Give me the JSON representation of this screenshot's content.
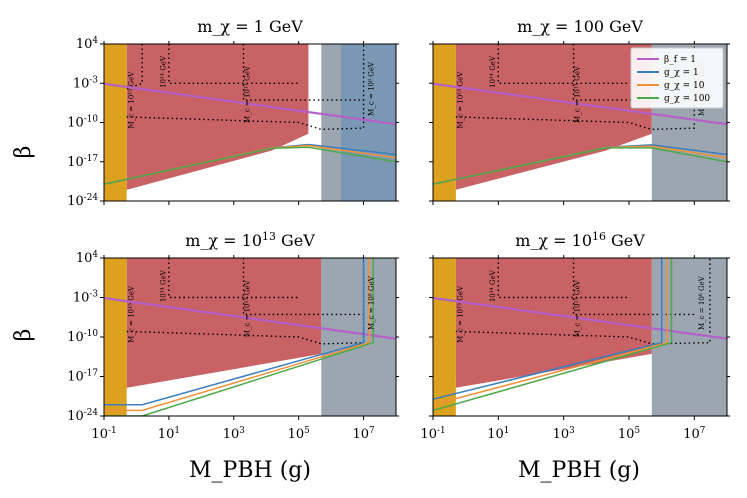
{
  "chart_data": {
    "type": "area",
    "x_scale": "log",
    "y_scale": "log",
    "xlim": [
      0.1,
      100000000
    ],
    "ylim": [
      1e-24,
      10000
    ],
    "shared_xlabel": "M_PBH (g)",
    "shared_ylabel": "β",
    "x_ticks": [
      {
        "value": 0.1,
        "label": "10^-1"
      },
      {
        "value": 10,
        "label": "10^1"
      },
      {
        "value": 1000,
        "label": "10^3"
      },
      {
        "value": 100000,
        "label": "10^5"
      },
      {
        "value": 10000000,
        "label": "10^7"
      }
    ],
    "y_ticks": [
      {
        "value": 1e-24,
        "label": "10^-24"
      },
      {
        "value": 1e-17,
        "label": "10^-17"
      },
      {
        "value": 1e-10,
        "label": "10^-10"
      },
      {
        "value": 0.001,
        "label": "10^-3"
      },
      {
        "value": 10000,
        "label": "10^4"
      }
    ],
    "colors": {
      "beta_f": "#b55fc8",
      "g1": "#3b7dbd",
      "g10": "#f0913a",
      "g100": "#4da84a",
      "orange_band": "#dba11f",
      "red_region": "#c65a5d",
      "gray_region": "#8a97a3",
      "blue_region": "#6f93b4"
    },
    "legend": [
      {
        "key": "beta_f",
        "label": "β_f = 1"
      },
      {
        "key": "g1",
        "label": "g_χ = 1"
      },
      {
        "key": "g10",
        "label": "g_χ = 10"
      },
      {
        "key": "g100",
        "label": "g_χ = 100"
      }
    ],
    "panels": [
      {
        "title": "m_χ = 1 GeV",
        "orange_band": [
          0.1,
          0.5
        ],
        "red_region": [
          [
            0.5,
            10000
          ],
          [
            200000,
            10000
          ],
          [
            200000,
            1e-12
          ],
          [
            15000,
            1e-15
          ],
          [
            0.5,
            1e-22
          ]
        ],
        "gray_region": [
          [
            500000,
            10000
          ],
          [
            100000000,
            10000
          ],
          [
            100000000,
            1e-24
          ],
          [
            500000,
            1e-24
          ]
        ],
        "blue_region": [
          [
            2000000,
            10000
          ],
          [
            100000000,
            10000
          ],
          [
            100000000,
            1e-24
          ],
          [
            2000000,
            1e-24
          ]
        ],
        "series": [
          {
            "key": "beta_f",
            "points": [
              [
                0.1,
                0.0008
              ],
              [
                100000000,
                5e-11
              ]
            ]
          },
          {
            "key": "g1",
            "points": [
              [
                0.1,
                1e-21
              ],
              [
                15000,
                3e-15
              ],
              [
                200000,
                1.2e-14
              ],
              [
                100000000,
                2e-16
              ]
            ]
          },
          {
            "key": "g10",
            "points": [
              [
                0.1,
                1e-21
              ],
              [
                15000,
                3e-15
              ],
              [
                200000,
                8e-15
              ],
              [
                100000000,
                5e-17
              ]
            ]
          },
          {
            "key": "g100",
            "points": [
              [
                0.1,
                1e-21
              ],
              [
                15000,
                2.5e-15
              ],
              [
                200000,
                4e-15
              ],
              [
                100000000,
                1e-17
              ]
            ]
          }
        ],
        "dotted_bounds": [
          [
            [
              0.5,
              1e-09
            ],
            [
              100000,
              1e-10
            ],
            [
              500000,
              6e-12
            ],
            [
              10000000,
              1e-11
            ],
            [
              10000000,
              10000
            ]
          ],
          [
            [
              10,
              10000
            ],
            [
              10,
              0.001
            ],
            [
              100000,
              0.001
            ]
          ],
          [
            [
              2000,
              10000
            ],
            [
              2000,
              1e-06
            ],
            [
              10000000,
              1e-06
            ]
          ],
          [
            [
              1.5,
              10000
            ],
            [
              1.5,
              0.001
            ],
            [
              0.5,
              0.0001
            ]
          ]
        ],
        "annotations": [
          "M_c = 10^15 GeV",
          "10^14 GeV",
          "M_c = 10^11 GeV",
          "M_c = 10^8 GeV"
        ]
      },
      {
        "title": "m_χ = 100 GeV",
        "orange_band": [
          0.1,
          0.5
        ],
        "red_region": [
          [
            0.5,
            10000
          ],
          [
            500000,
            10000
          ],
          [
            500000,
            1e-12
          ],
          [
            20000,
            1e-15
          ],
          [
            0.5,
            1e-22
          ]
        ],
        "gray_region": [
          [
            500000,
            10000
          ],
          [
            100000000,
            10000
          ],
          [
            100000000,
            1e-24
          ],
          [
            500000,
            1e-24
          ]
        ],
        "blue_region": [],
        "series": [
          {
            "key": "beta_f",
            "points": [
              [
                0.1,
                0.0008
              ],
              [
                100000000,
                5e-11
              ]
            ]
          },
          {
            "key": "g1",
            "points": [
              [
                0.1,
                1e-21
              ],
              [
                20000,
                4e-15
              ],
              [
                500000,
                1e-14
              ],
              [
                100000000,
                2e-16
              ]
            ]
          },
          {
            "key": "g10",
            "points": [
              [
                0.1,
                1e-21
              ],
              [
                20000,
                3.5e-15
              ],
              [
                500000,
                6e-15
              ],
              [
                100000000,
                5e-17
              ]
            ]
          },
          {
            "key": "g100",
            "points": [
              [
                0.1,
                1e-21
              ],
              [
                20000,
                3e-15
              ],
              [
                500000,
                3e-15
              ],
              [
                100000000,
                1e-17
              ]
            ]
          }
        ],
        "dotted_bounds": [
          [
            [
              0.5,
              1e-09
            ],
            [
              100000,
              1e-10
            ],
            [
              500000,
              6e-12
            ],
            [
              10000000,
              1e-11
            ],
            [
              10000000,
              10000
            ]
          ],
          [
            [
              10,
              10000
            ],
            [
              10,
              0.001
            ],
            [
              100000,
              0.001
            ]
          ],
          [
            [
              2000,
              10000
            ],
            [
              2000,
              1e-06
            ],
            [
              10000000,
              1e-06
            ]
          ]
        ],
        "annotations": [
          "M_c = 10^15 GeV",
          "10^14 GeV",
          "M_c = 10^11 GeV",
          "M_c = 10^8 GeV"
        ]
      },
      {
        "title": "m_χ = 10^13 GeV",
        "orange_band": [
          0.1,
          0.5
        ],
        "red_region": [
          [
            0.5,
            10000
          ],
          [
            500000,
            10000
          ],
          [
            500000,
            1e-13
          ],
          [
            0.5,
            1e-19
          ]
        ],
        "gray_region": [
          [
            500000,
            10000
          ],
          [
            100000000,
            10000
          ],
          [
            100000000,
            1e-24
          ],
          [
            500000,
            1e-24
          ]
        ],
        "blue_region": [],
        "series": [
          {
            "key": "beta_f",
            "points": [
              [
                0.1,
                0.0008
              ],
              [
                100000000,
                5e-11
              ]
            ]
          },
          {
            "key": "g1",
            "points": [
              [
                0.1,
                1e-22
              ],
              [
                1.5,
                1e-22
              ],
              [
                10000000,
                1e-11
              ],
              [
                10000000,
                10000
              ]
            ]
          },
          {
            "key": "g10",
            "points": [
              [
                0.1,
                1e-23
              ],
              [
                1.5,
                1e-23
              ],
              [
                15000000,
                1e-11
              ],
              [
                15000000,
                10000
              ]
            ]
          },
          {
            "key": "g100",
            "points": [
              [
                0.1,
                1e-24
              ],
              [
                1.5,
                1e-24
              ],
              [
                20000000,
                1e-11
              ],
              [
                20000000,
                10000
              ]
            ]
          }
        ],
        "dotted_bounds": [
          [
            [
              0.5,
              1e-09
            ],
            [
              100000,
              1e-10
            ],
            [
              500000,
              6e-12
            ],
            [
              10000000,
              1e-11
            ],
            [
              10000000,
              10000
            ]
          ],
          [
            [
              10,
              10000
            ],
            [
              10,
              0.001
            ],
            [
              100000,
              0.001
            ]
          ],
          [
            [
              2000,
              10000
            ],
            [
              2000,
              1e-06
            ],
            [
              10000000,
              1e-06
            ]
          ]
        ],
        "annotations": [
          "M_c = 10^15 GeV",
          "10^14 GeV",
          "M_c = 10^11 GeV",
          "M_c = 10^8 GeV"
        ]
      },
      {
        "title": "m_χ = 10^16 GeV",
        "orange_band": [
          0.1,
          0.5
        ],
        "red_region": [
          [
            0.5,
            10000
          ],
          [
            500000,
            10000
          ],
          [
            500000,
            1e-13
          ],
          [
            0.5,
            1e-19
          ]
        ],
        "gray_region": [
          [
            500000,
            10000
          ],
          [
            100000000,
            10000
          ],
          [
            100000000,
            1e-24
          ],
          [
            500000,
            1e-24
          ]
        ],
        "blue_region": [],
        "series": [
          {
            "key": "beta_f",
            "points": [
              [
                0.1,
                0.0008
              ],
              [
                100000000,
                5e-11
              ]
            ]
          },
          {
            "key": "g1",
            "points": [
              [
                0.1,
                1e-21
              ],
              [
                1000000,
                1e-11
              ],
              [
                1000000,
                10000
              ]
            ]
          },
          {
            "key": "g10",
            "points": [
              [
                0.1,
                1e-22
              ],
              [
                1500000,
                1e-11
              ],
              [
                1500000,
                10000
              ]
            ]
          },
          {
            "key": "g100",
            "points": [
              [
                0.1,
                1e-23
              ],
              [
                2000000,
                1e-11
              ],
              [
                2000000,
                10000
              ]
            ]
          }
        ],
        "dotted_bounds": [
          [
            [
              0.5,
              1e-09
            ],
            [
              100000,
              1e-10
            ],
            [
              500000,
              6e-12
            ],
            [
              30000000,
              1e-11
            ],
            [
              30000000,
              10000
            ]
          ],
          [
            [
              10,
              10000
            ],
            [
              10,
              0.001
            ],
            [
              100000,
              0.001
            ]
          ],
          [
            [
              2000,
              10000
            ],
            [
              2000,
              1e-06
            ],
            [
              10000000,
              1e-06
            ]
          ]
        ],
        "annotations": [
          "M_c = 10^15 GeV",
          "10^14 GeV",
          "M_c = 10^11 GeV",
          "M_c = 10^6 GeV"
        ]
      }
    ]
  }
}
